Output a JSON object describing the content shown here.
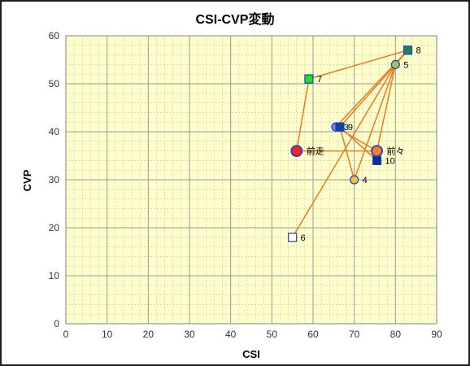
{
  "chart_data": {
    "type": "scatter",
    "title": "CSI-CVP変動",
    "xlabel": "CSI",
    "ylabel": "CVP",
    "xlim": [
      0,
      90
    ],
    "ylim": [
      0,
      60
    ],
    "xticks": [
      0,
      10,
      20,
      30,
      40,
      50,
      60,
      70,
      80,
      90
    ],
    "yticks": [
      0,
      10,
      20,
      30,
      40,
      50,
      60
    ],
    "grid": true,
    "colors": {
      "plot_bg": "#ffffcc",
      "grid": "#9a9a9a",
      "line": "#f07820",
      "blue_border": "#1f3fbf"
    },
    "points": [
      {
        "label": "前走",
        "x": 56,
        "y": 36,
        "marker": "circle-large",
        "fill": "#ff2020"
      },
      {
        "label": "前々",
        "x": 75.5,
        "y": 36,
        "marker": "circle-large",
        "fill": "#f08030"
      },
      {
        "label": "3",
        "x": 65.5,
        "y": 41,
        "marker": "circle",
        "fill": "#8080ff"
      },
      {
        "label": "4",
        "x": 70,
        "y": 30,
        "marker": "circle",
        "fill": "#f4c040"
      },
      {
        "label": "5",
        "x": 80,
        "y": 54,
        "marker": "circle",
        "fill": "#a0c850"
      },
      {
        "label": "6",
        "x": 55,
        "y": 18,
        "marker": "square",
        "fill": "#ffffff"
      },
      {
        "label": "7",
        "x": 59,
        "y": 51,
        "marker": "square",
        "fill": "#20e020"
      },
      {
        "label": "8",
        "x": 83,
        "y": 57,
        "marker": "square",
        "fill": "#208060"
      },
      {
        "label": "9",
        "x": 66.5,
        "y": 41,
        "marker": "square",
        "fill": "#1040a0"
      },
      {
        "label": "10",
        "x": 75.5,
        "y": 34,
        "marker": "square",
        "fill": "#103090"
      }
    ],
    "connections": [
      [
        56,
        36,
        75.5,
        36
      ],
      [
        56,
        36,
        59,
        51
      ],
      [
        59,
        51,
        83,
        57
      ],
      [
        83,
        57,
        80,
        54
      ],
      [
        83,
        57,
        65.5,
        41
      ],
      [
        80,
        54,
        55,
        18
      ],
      [
        80,
        54,
        70,
        30
      ],
      [
        80,
        54,
        66.5,
        41
      ],
      [
        80,
        54,
        75.5,
        36
      ],
      [
        65.5,
        41,
        75.5,
        36
      ],
      [
        66.5,
        41,
        75.5,
        34
      ],
      [
        66.5,
        41,
        70,
        30
      ]
    ]
  }
}
